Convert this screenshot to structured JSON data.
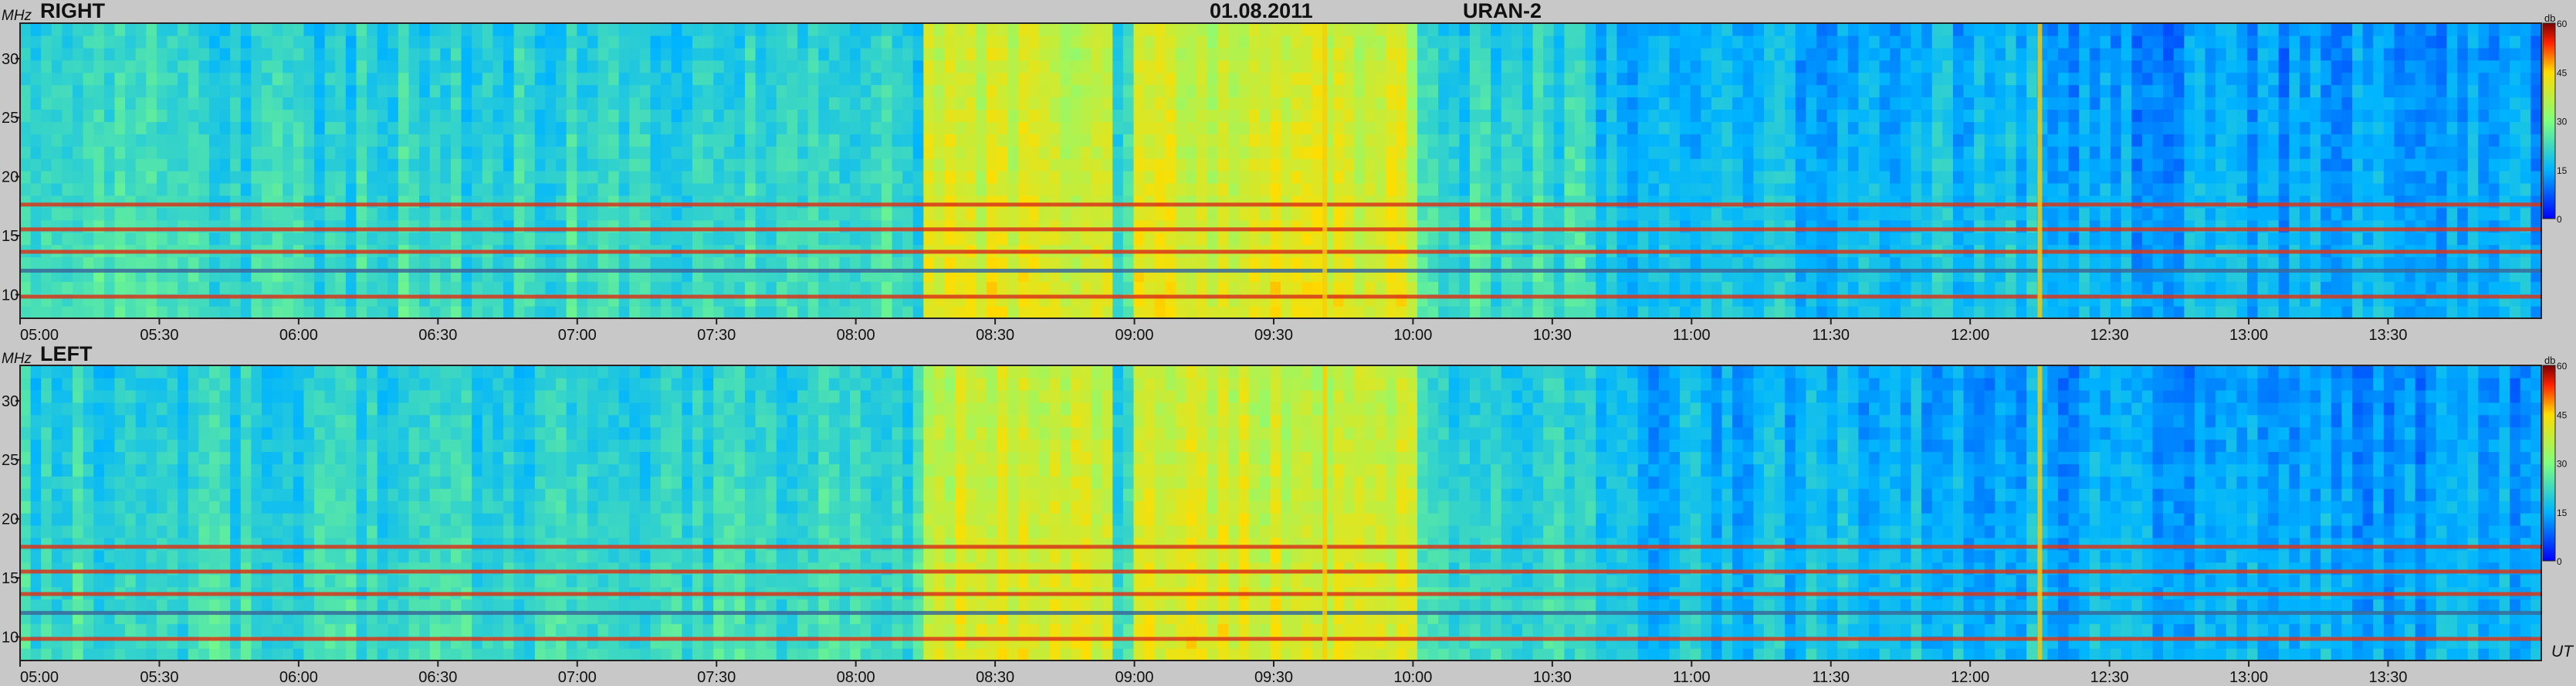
{
  "header": {
    "date": "01.08.2011",
    "instrument": "URAN-2"
  },
  "chart_data": [
    {
      "type": "heatmap",
      "panel_label": "RIGHT",
      "ylabel": "MHz",
      "xlabel": "",
      "ylim": [
        8,
        33
      ],
      "xlim": [
        "05:00",
        "14:03"
      ],
      "ytick_labels": [
        "10",
        "15",
        "20",
        "25",
        "30"
      ],
      "xtick_labels": [
        "05:00",
        "05:30",
        "06:00",
        "06:30",
        "07:00",
        "07:30",
        "08:00",
        "08:30",
        "09:00",
        "09:30",
        "10:00",
        "10:30",
        "11:00",
        "11:30",
        "12:00",
        "12:30",
        "13:00",
        "13:30"
      ],
      "colorbar": {
        "label": "db",
        "range": [
          0,
          60
        ],
        "tick_labels": [
          "0",
          "15",
          "30",
          "45",
          "60"
        ]
      },
      "interference_bands_mhz": [
        9.8,
        12.0,
        13.6,
        15.5,
        17.6
      ],
      "active_periods_ut": [
        [
          "08:15",
          "08:55"
        ],
        [
          "09:00",
          "10:00"
        ]
      ],
      "grid": false
    },
    {
      "type": "heatmap",
      "panel_label": "LEFT",
      "ylabel": "MHz",
      "xlabel": "UT",
      "ylim": [
        8,
        33
      ],
      "xlim": [
        "05:00",
        "14:03"
      ],
      "ytick_labels": [
        "10",
        "15",
        "20",
        "25",
        "30"
      ],
      "xtick_labels": [
        "05:00",
        "05:30",
        "06:00",
        "06:30",
        "07:00",
        "07:30",
        "08:00",
        "08:30",
        "09:00",
        "09:30",
        "10:00",
        "10:30",
        "11:00",
        "11:30",
        "12:00",
        "12:30",
        "13:00",
        "13:30"
      ],
      "colorbar": {
        "label": "db",
        "range": [
          0,
          60
        ],
        "tick_labels": [
          "0",
          "15",
          "30",
          "45",
          "60"
        ]
      },
      "interference_bands_mhz": [
        9.8,
        12.0,
        13.6,
        15.5,
        17.6
      ],
      "active_periods_ut": [
        [
          "08:15",
          "08:55"
        ],
        [
          "09:00",
          "10:00"
        ]
      ],
      "grid": false
    }
  ]
}
